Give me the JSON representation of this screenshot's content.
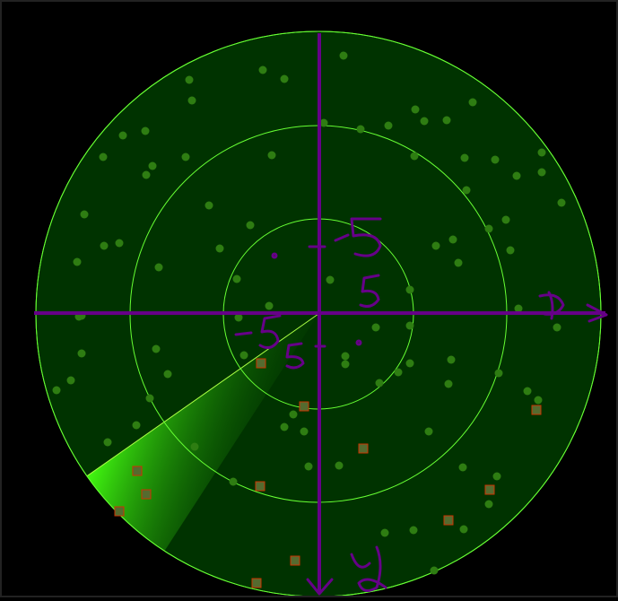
{
  "radar": {
    "title": "",
    "background": "#000000",
    "field_color": "#003300",
    "ring_color": "#66ff33",
    "grid_color": "#660088",
    "dot_color": "#2e7d12",
    "target_color": "#cc3300",
    "target_fill": "#556b2f",
    "sweep_color": "#33ff00",
    "ring_count": 3,
    "sweep_angle_deg": 215,
    "sweep_width_deg": 22,
    "handwritten_labels": {
      "x_axis": "x",
      "y_axis": "y",
      "tick_pos_x": "5",
      "tick_neg_x": "-5",
      "tick_pos_y": "-5",
      "tick_neg_y": "5"
    }
  }
}
